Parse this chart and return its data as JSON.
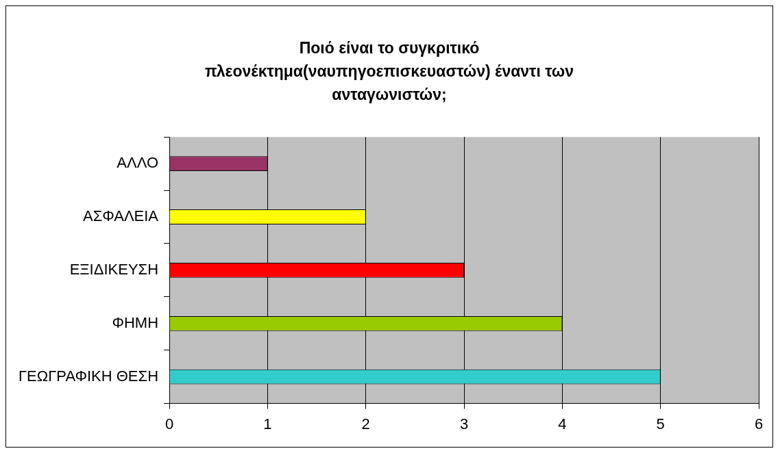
{
  "chart_data": {
    "type": "bar",
    "orientation": "horizontal",
    "title": "Ποιό είναι το συγκριτικό πλεονέκτημα(ναυπηγοεπισκευαστών) έναντι των ανταγωνιστών;",
    "categories": [
      "ΑΛΛΟ",
      "ΑΣΦΑΛΕΙΑ",
      "ΕΞΙΔΙΚΕΥΣΗ",
      "ΦΗΜΗ",
      "ΓΕΩΓΡΑΦΙΚΗ ΘΕΣΗ"
    ],
    "values": [
      1,
      2,
      3,
      4,
      5
    ],
    "colors": [
      "#993366",
      "#ffff00",
      "#ff0000",
      "#99cc00",
      "#33cccc"
    ],
    "xlim": [
      0,
      6
    ],
    "xticks": [
      0,
      1,
      2,
      3,
      4,
      5,
      6
    ],
    "grid": "x",
    "legend": false
  }
}
